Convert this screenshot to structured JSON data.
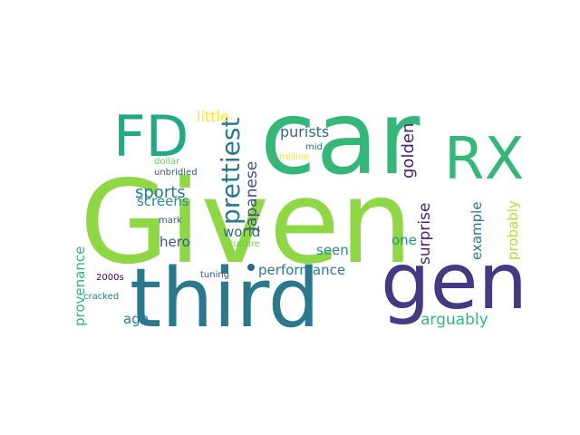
{
  "words": [
    {
      "text": "Given",
      "color": "#8fd744"
    },
    {
      "text": "car",
      "color": "#35b779"
    },
    {
      "text": "third",
      "color": "#2a788e"
    },
    {
      "text": "gen",
      "color": "#443a83"
    },
    {
      "text": "FD",
      "color": "#22a884"
    },
    {
      "text": "RX",
      "color": "#35b779"
    },
    {
      "text": "prettiest",
      "color": "#2a788e"
    },
    {
      "text": "Japanese",
      "color": "#3b528b"
    },
    {
      "text": "golden",
      "color": "#481f70"
    },
    {
      "text": "little",
      "color": "#fde725"
    },
    {
      "text": "purists",
      "color": "#31688e"
    },
    {
      "text": "sports",
      "color": "#2a788e"
    },
    {
      "text": "screens",
      "color": "#21918c"
    },
    {
      "text": "hero",
      "color": "#3b528b"
    },
    {
      "text": "world",
      "color": "#31688e"
    },
    {
      "text": "performance",
      "color": "#2a788e"
    },
    {
      "text": "arguably",
      "color": "#35b779"
    },
    {
      "text": "age",
      "color": "#2a788e"
    },
    {
      "text": "surprise",
      "color": "#481f70"
    },
    {
      "text": "example",
      "color": "#2a788e"
    },
    {
      "text": "probably",
      "color": "#b5de2b"
    },
    {
      "text": "one",
      "color": "#21918c"
    },
    {
      "text": "seen",
      "color": "#21918c"
    },
    {
      "text": "provenance",
      "color": "#35b779"
    },
    {
      "text": "dollar",
      "color": "#6ece58"
    },
    {
      "text": "unbridled",
      "color": "#3b528b"
    },
    {
      "text": "mid",
      "color": "#31688e"
    },
    {
      "text": "million",
      "color": "#fde725"
    },
    {
      "text": "mark",
      "color": "#3b528b"
    },
    {
      "text": "culture",
      "color": "#6ece58"
    },
    {
      "text": "2000s",
      "color": "#440154"
    },
    {
      "text": "tuning",
      "color": "#3b528b"
    },
    {
      "text": "cracked",
      "color": "#2a788e"
    }
  ]
}
